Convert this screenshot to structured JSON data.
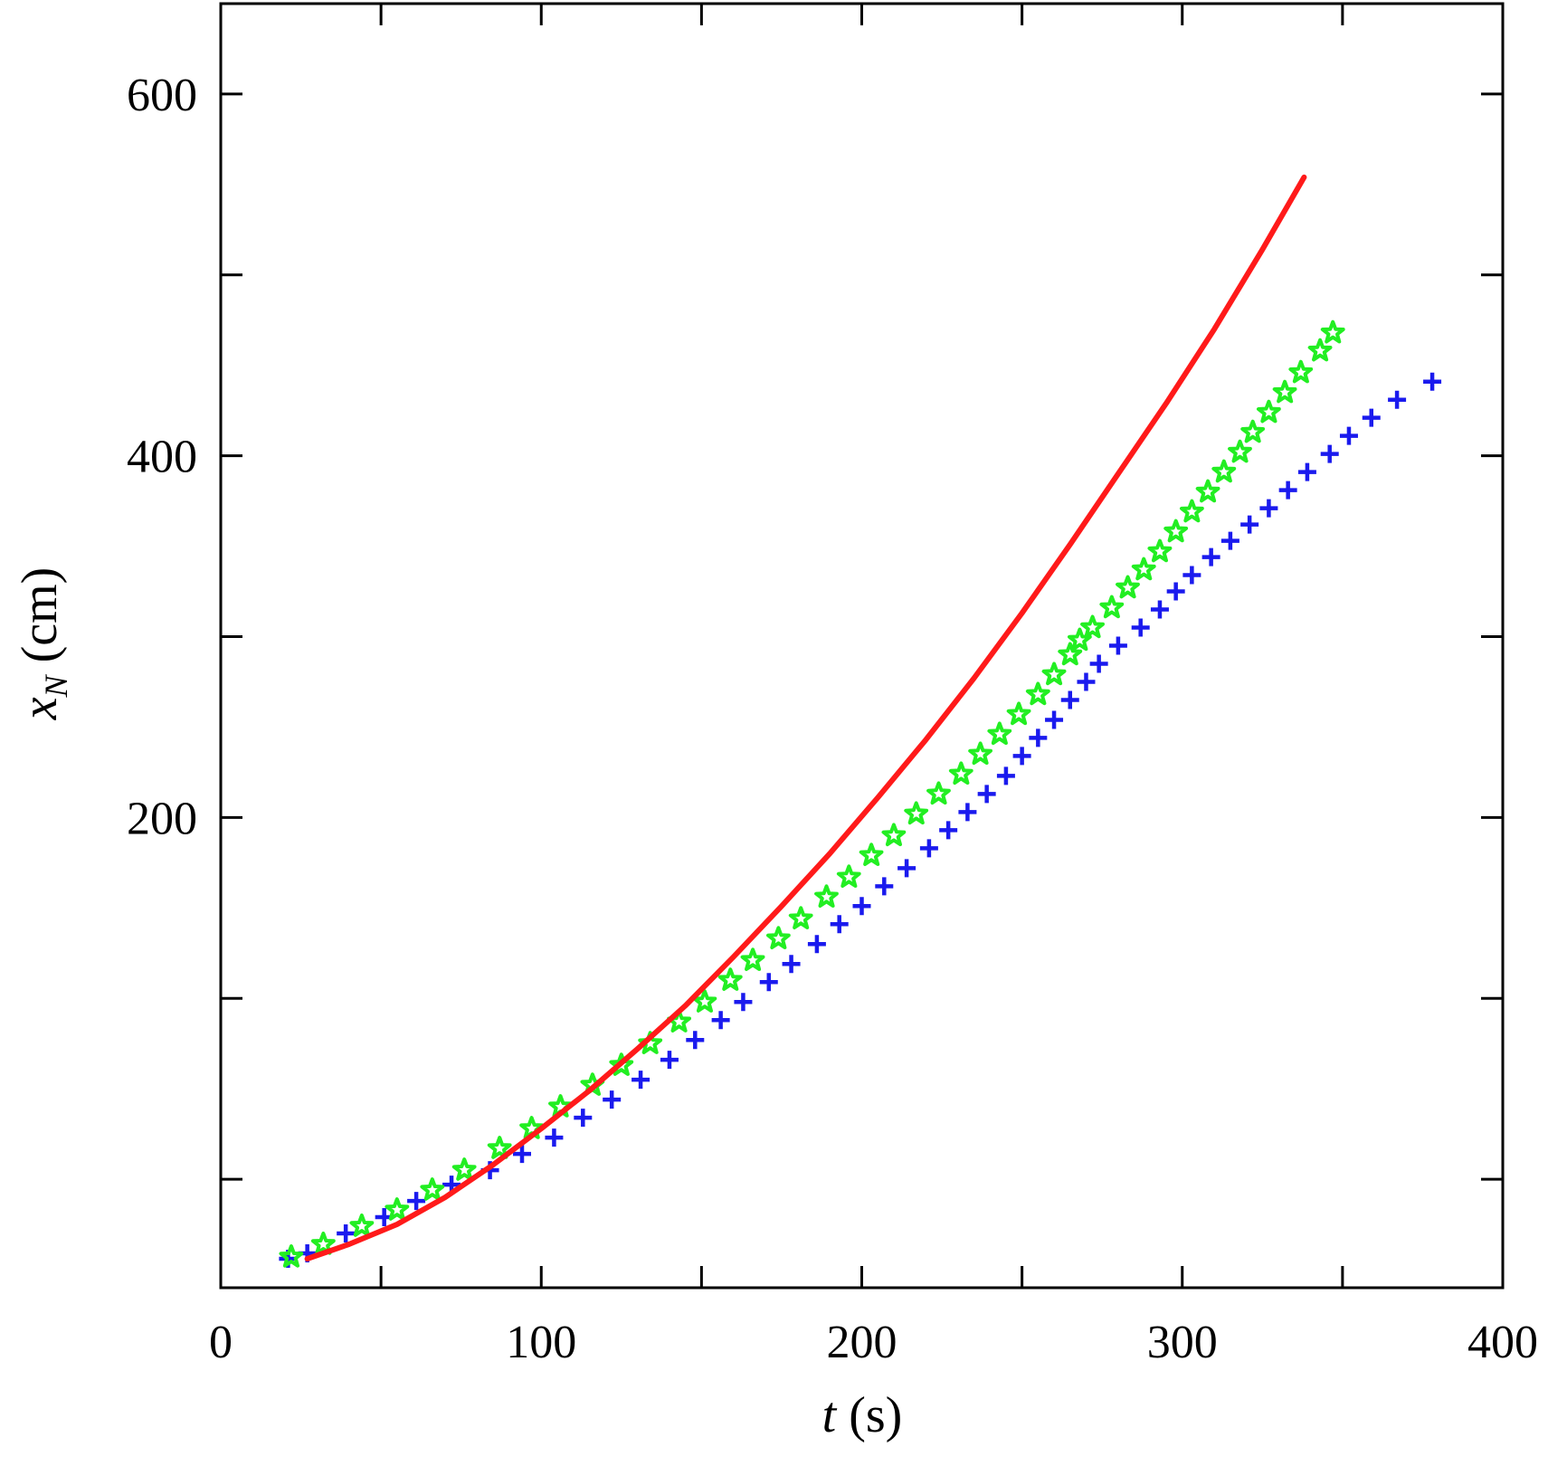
{
  "chart_data": {
    "type": "scatter",
    "title": "",
    "xlabel_var": "t",
    "xlabel_unit": " (s)",
    "ylabel_var": "x",
    "ylabel_sub": "N",
    "ylabel_unit": " (cm)",
    "xlim": [
      0,
      400
    ],
    "ylim": [
      -60,
      650
    ],
    "x_ticks": [
      0,
      50,
      100,
      150,
      200,
      250,
      300,
      350,
      400
    ],
    "x_tick_labels": [
      "0",
      "100",
      "200",
      "300",
      "400"
    ],
    "x_tick_label_values": [
      0,
      100,
      200,
      300,
      400
    ],
    "y_ticks": [
      0,
      100,
      200,
      300,
      400,
      500,
      600
    ],
    "y_tick_labels": [
      "200",
      "400",
      "600"
    ],
    "y_tick_label_values": [
      200,
      400,
      600
    ],
    "grid": false,
    "legend": "none",
    "colors": {
      "line": "#ff1a1a",
      "stars": "#22ee22",
      "plus": "#1a1aee"
    },
    "series": [
      {
        "marker": "line",
        "x": [
          27,
          40,
          55,
          70,
          85,
          100,
          115,
          130,
          145,
          160,
          175,
          190,
          205,
          220,
          235,
          250,
          265,
          280,
          295,
          310,
          325,
          338
        ],
        "y": [
          -44,
          -36,
          -25,
          -10,
          8,
          28,
          49,
          72,
          96,
          123,
          151,
          180,
          211,
          243,
          277,
          313,
          351,
          390,
          429,
          470,
          514,
          554
        ]
      },
      {
        "marker": "star",
        "x": [
          22,
          32,
          44,
          55,
          66,
          76,
          87,
          97,
          106,
          116,
          125,
          134,
          143,
          151,
          159,
          166,
          174,
          181,
          189,
          196,
          203,
          210,
          217,
          224,
          231,
          237,
          243,
          249,
          255,
          260,
          265,
          268,
          272,
          278,
          283,
          288,
          293,
          298,
          303,
          308,
          313,
          318,
          322,
          327,
          332,
          337,
          343,
          347
        ],
        "y": [
          -43,
          -36,
          -26,
          -17,
          -6,
          5,
          17,
          28,
          40,
          52,
          63,
          75,
          87,
          98,
          110,
          121,
          133,
          144,
          156,
          167,
          179,
          190,
          202,
          213,
          224,
          235,
          246,
          257,
          268,
          279,
          290,
          298,
          305,
          316,
          327,
          337,
          347,
          358,
          369,
          380,
          391,
          402,
          413,
          424,
          435,
          446,
          458,
          468
        ]
      },
      {
        "marker": "plus",
        "x": [
          21,
          27,
          39,
          51,
          61,
          72,
          84,
          94,
          104,
          113,
          122,
          131,
          140,
          148,
          156,
          163,
          171,
          178,
          186,
          193,
          200,
          207,
          214,
          221,
          227,
          233,
          239,
          245,
          250,
          255,
          260,
          265,
          270,
          274,
          280,
          287,
          293,
          298,
          303,
          309,
          315,
          321,
          327,
          333,
          339,
          346,
          352,
          359,
          367,
          378
        ],
        "y": [
          -44,
          -41,
          -30,
          -21,
          -12,
          -3,
          5,
          14,
          23,
          34,
          44,
          55,
          66,
          77,
          88,
          98,
          109,
          119,
          130,
          141,
          151,
          162,
          172,
          183,
          193,
          203,
          213,
          223,
          234,
          244,
          254,
          265,
          275,
          285,
          295,
          305,
          315,
          325,
          334,
          344,
          353,
          362,
          371,
          381,
          391,
          401,
          411,
          421,
          431,
          441
        ]
      }
    ]
  }
}
